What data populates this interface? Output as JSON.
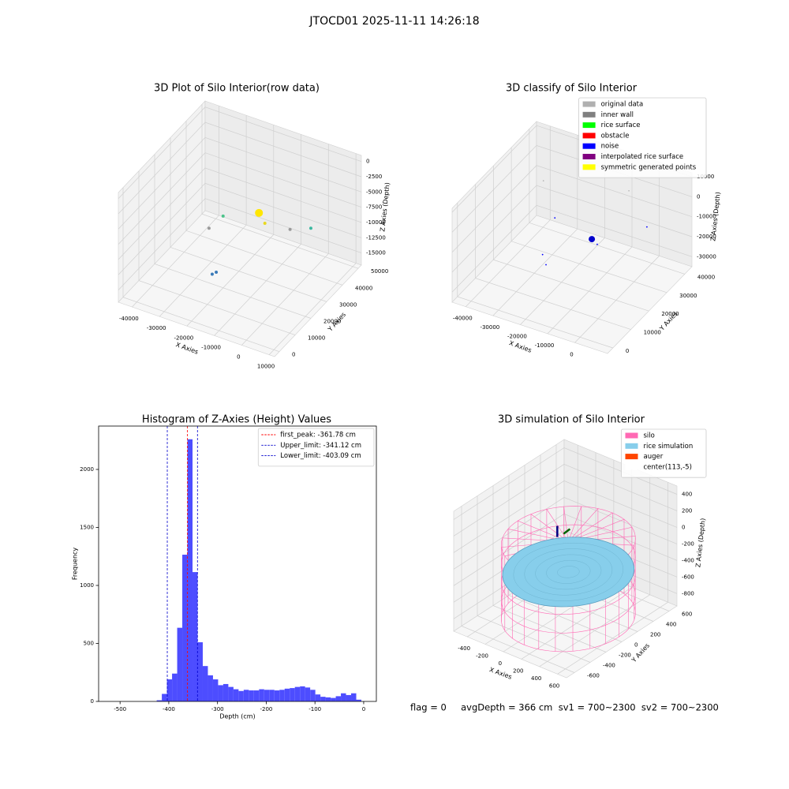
{
  "title": "JTOCD01 2025-11-11 14:26:18",
  "footer": "flag = 0     avgDepth = 366 cm  sv1 = 700~2300  sv2 = 700~2300",
  "chart_data": [
    {
      "type": "scatter3d",
      "title": "3D Plot of Silo Interior(row data)",
      "xlabel": "X Axies",
      "ylabel": "Y Axies",
      "zlabel": "Z Axies (Depth)",
      "xlim": [
        -45000,
        12000
      ],
      "ylim": [
        -3000,
        52000
      ],
      "zlim": [
        -17000,
        1000
      ],
      "xticks": [
        -40000,
        -30000,
        -20000,
        -10000,
        0,
        10000
      ],
      "yticks": [
        0,
        10000,
        20000,
        30000,
        40000,
        50000
      ],
      "zticks": [
        0,
        -2500,
        -5000,
        -7500,
        -10000,
        -12500,
        -15000
      ],
      "series": [
        {
          "color": "#ffe600",
          "size": 5,
          "x": [
            -15400
          ],
          "y": [
            34700
          ],
          "z": [
            -8000
          ]
        },
        {
          "color": "#e8d820",
          "size": 2,
          "x": [
            -12500
          ],
          "y": [
            33400
          ],
          "z": [
            -8900
          ]
        },
        {
          "color": "#4cc38a",
          "size": 2,
          "x": [
            -24400
          ],
          "y": [
            27600
          ],
          "z": [
            -8000
          ]
        },
        {
          "color": "#9a9a9a",
          "size": 2,
          "x": [
            -25100,
            -4000
          ],
          "y": [
            19900,
            34600
          ],
          "z": [
            -8000,
            -8900
          ]
        },
        {
          "color": "#3bb8a0",
          "size": 2,
          "x": [
            1400
          ],
          "y": [
            38400
          ],
          "z": [
            -8900
          ]
        },
        {
          "color": "#3a7ab8",
          "size": 2,
          "x": [
            -23100,
            -24000
          ],
          "y": [
            21000,
            20000
          ],
          "z": [
            -15200,
            -15400
          ]
        }
      ]
    },
    {
      "type": "scatter3d",
      "title": "3D classify of Silo Interior",
      "xlabel": "X Axies",
      "ylabel": "Y Axies",
      "zlabel": "Z Axies (Depth)",
      "xlim": [
        -45000,
        12000
      ],
      "ylim": [
        -3000,
        44000
      ],
      "zlim": [
        -35000,
        12000
      ],
      "xticks": [
        -40000,
        -30000,
        -20000,
        -10000,
        0
      ],
      "yticks": [
        0,
        10000,
        20000,
        30000,
        40000
      ],
      "zticks": [
        10000,
        0,
        -10000,
        -20000,
        -30000
      ],
      "legend": "upper right",
      "series": [
        {
          "name": "original data",
          "color": "#b0b0b0",
          "size": 0.8,
          "x": [
            -10800,
            -34700
          ],
          "y": [
            43500,
            32200
          ],
          "z": [
            -6800,
            -2100
          ]
        },
        {
          "name": "inner wall",
          "color": "#808080",
          "size": 1,
          "x": [],
          "y": [],
          "z": []
        },
        {
          "name": "rice surface",
          "color": "#00ff00",
          "size": 1,
          "x": [],
          "y": [],
          "z": []
        },
        {
          "name": "obstacle",
          "color": "#ff0000",
          "size": 1,
          "x": [],
          "y": [],
          "z": []
        },
        {
          "name": "noise",
          "color": "#0000ff",
          "size": 0.9,
          "x": [
            -36700,
            -30200,
            -26500,
            -17800,
            -1100
          ],
          "y": [
            41600,
            24900,
            21200,
            36500,
            38800
          ],
          "z": [
            -30300,
            -30300,
            -30300,
            -30300,
            -16200
          ]
        },
        {
          "name": "interpolated rice surface",
          "color": "#800080",
          "size": 1,
          "x": [],
          "y": [],
          "z": []
        },
        {
          "name": "symmetric generated points",
          "color": "#ffff00",
          "size": 1,
          "x": [],
          "y": [],
          "z": []
        },
        {
          "color": "#0000cc",
          "size": 4,
          "x": [
            -20700
          ],
          "y": [
            37900
          ],
          "z": [
            -30300
          ]
        }
      ]
    },
    {
      "type": "histogram",
      "title": "Histogram of Z-Axies (Height) Values",
      "xlabel": "Depth (cm)",
      "ylabel": "Frequency",
      "color": "#4d4dff",
      "xlim": [
        -544,
        26
      ],
      "ylim": [
        0,
        2374
      ],
      "xticks": [
        -500,
        -400,
        -300,
        -200,
        -100,
        0
      ],
      "yticks": [
        0,
        500,
        1000,
        1500,
        2000
      ],
      "legend": "upper right",
      "bins": [
        -529.78,
        -519.28,
        -508.78,
        -498.28,
        -487.78,
        -477.28,
        -466.78,
        -456.28,
        -445.78,
        -435.28,
        -424.78,
        -414.28,
        -403.78,
        -393.28,
        -382.78,
        -372.28,
        -361.78,
        -351.28,
        -340.78,
        -330.28,
        -319.78,
        -309.28,
        -298.78,
        -288.28,
        -277.78,
        -267.28,
        -256.78,
        -246.28,
        -235.78,
        -225.28,
        -214.78,
        -204.28,
        -193.78,
        -183.28,
        -172.78,
        -162.28,
        -151.78,
        -141.28,
        -130.78,
        -120.28,
        -109.78,
        -99.28,
        -88.78,
        -78.28,
        -67.78,
        -57.28,
        -46.78,
        -36.28,
        -25.78,
        -15.28,
        -4.78
      ],
      "counts": [
        0,
        0,
        0,
        0,
        0,
        0,
        0,
        0,
        0,
        0,
        10,
        65,
        190,
        240,
        635,
        1265,
        2260,
        1115,
        510,
        305,
        225,
        190,
        140,
        150,
        125,
        105,
        90,
        100,
        95,
        95,
        105,
        100,
        100,
        95,
        100,
        110,
        115,
        125,
        130,
        120,
        100,
        60,
        40,
        35,
        30,
        45,
        70,
        55,
        70,
        15
      ],
      "vlines": [
        {
          "label": "first_peak: -361.78 cm",
          "value": -361.78,
          "color": "#ff0000"
        },
        {
          "label": "Upper_limit: -341.12 cm",
          "value": -341.12,
          "color": "#0000cc"
        },
        {
          "label": "Lower_limit: -403.09 cm",
          "value": -403.09,
          "color": "#0000cc"
        }
      ]
    },
    {
      "type": "silo3d",
      "title": "3D simulation of Silo Interior",
      "xlabel": "X Axies",
      "ylabel": "Y Axies",
      "zlabel": "Z Axies (Depth)",
      "xlim": [
        -550,
        700
      ],
      "ylim": [
        -700,
        700
      ],
      "zlim": [
        -950,
        500
      ],
      "xticks": [
        -400,
        -200,
        0,
        200,
        400,
        600
      ],
      "yticks": [
        -600,
        -400,
        -200,
        0,
        200,
        400,
        600
      ],
      "zticks": [
        400,
        200,
        0,
        -200,
        -400,
        -600,
        -800
      ],
      "legend": "upper right",
      "silo": {
        "center_x": 113,
        "center_y": -5,
        "radius": 560,
        "z_top": 0,
        "z_bottom": -900
      },
      "rice_surface_z": -366,
      "series": [
        {
          "name": "silo",
          "color": "#ff69b4"
        },
        {
          "name": "rice simulation",
          "color": "#87ceeb"
        },
        {
          "name": "auger",
          "color": "#ff4500"
        },
        {
          "name": "center(113,-5)",
          "color": "#ffffff"
        }
      ]
    }
  ]
}
